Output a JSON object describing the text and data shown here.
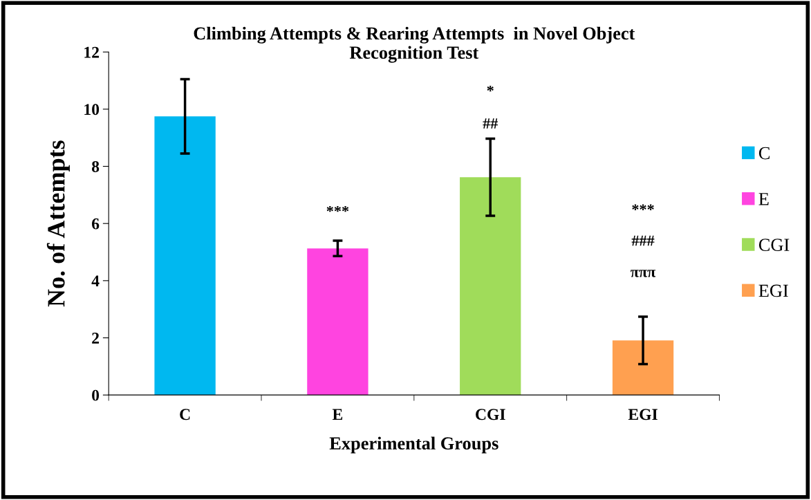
{
  "chart_data": {
    "type": "bar",
    "title": "Climbing Attempts & Rearing Attempts  in Novel Object\nRecognition Test",
    "xlabel": "Experimental Groups",
    "ylabel": "No. of Attempts",
    "categories": [
      "C",
      "E",
      "CGI",
      "EGI"
    ],
    "series": [
      {
        "name": "C",
        "color": "#00b8f0",
        "values": [
          9.75,
          null,
          null,
          null
        ],
        "errors": [
          1.3,
          null,
          null,
          null
        ]
      },
      {
        "name": "E",
        "color": "#ff44e0",
        "values": [
          null,
          5.13,
          null,
          null
        ],
        "errors": [
          null,
          0.27,
          null,
          null
        ]
      },
      {
        "name": "CGI",
        "color": "#a0dc5a",
        "values": [
          null,
          null,
          7.62,
          null
        ],
        "errors": [
          null,
          null,
          1.35,
          null
        ]
      },
      {
        "name": "EGI",
        "color": "#ffa050",
        "values": [
          null,
          null,
          null,
          1.91
        ],
        "errors": [
          null,
          null,
          null,
          0.83
        ]
      }
    ],
    "ylim": [
      0,
      12
    ],
    "yticks": [
      0,
      2,
      4,
      6,
      8,
      10,
      12
    ],
    "grid": false,
    "legend": "right",
    "annotations": [
      "***",
      "*",
      "##",
      "***",
      "###",
      "πππ"
    ]
  }
}
